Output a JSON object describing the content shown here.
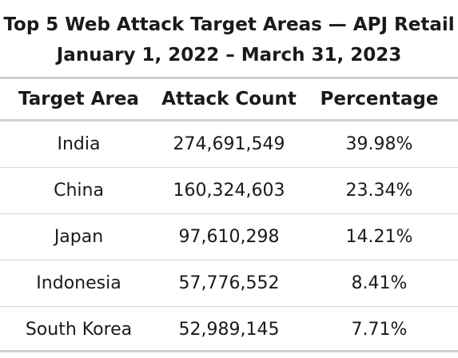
{
  "chart_data": {
    "type": "table",
    "title": "Top 5 Web Attack Target Areas — APJ Retail",
    "subtitle": "January 1, 2022 – March 31, 2023",
    "columns": [
      "Target Area",
      "Attack Count",
      "Percentage"
    ],
    "rows": [
      [
        "India",
        "274,691,549",
        "39.98%"
      ],
      [
        "China",
        "160,324,603",
        "23.34%"
      ],
      [
        "Japan",
        "97,610,298",
        "14.21%"
      ],
      [
        "Indonesia",
        "57,776,552",
        "8.41%"
      ],
      [
        "South Korea",
        "52,989,145",
        "7.71%"
      ]
    ]
  }
}
